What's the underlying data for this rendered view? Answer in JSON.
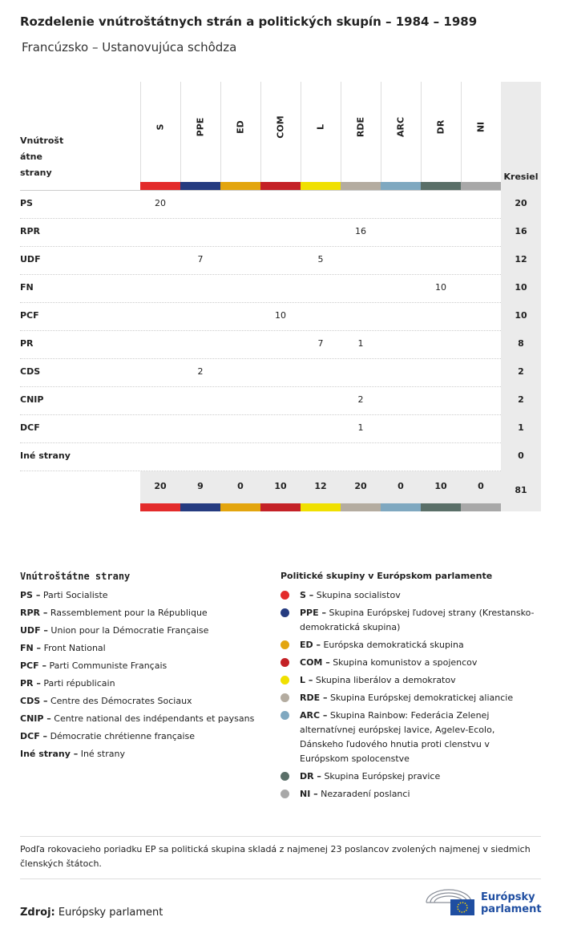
{
  "header": {
    "title": "Rozdelenie vnútroštátnych strán a politických skupín – 1984 – 1989",
    "subtitle": "Francúzsko – Ustanovujúca schôdza"
  },
  "table": {
    "row_header": "Vnútroštátne strany",
    "total_header": "Kresiel",
    "columns": [
      {
        "code": "S",
        "color": "#e32b2b"
      },
      {
        "code": "PPE",
        "color": "#253b80"
      },
      {
        "code": "ED",
        "color": "#e3a50e"
      },
      {
        "code": "COM",
        "color": "#c42126"
      },
      {
        "code": "L",
        "color": "#f0e000"
      },
      {
        "code": "RDE",
        "color": "#b4aca0"
      },
      {
        "code": "ARC",
        "color": "#7fa8c0"
      },
      {
        "code": "DR",
        "color": "#5a6f68"
      },
      {
        "code": "NI",
        "color": "#a8a8a8"
      }
    ],
    "rows": [
      {
        "party": "PS",
        "cells": [
          20,
          null,
          null,
          null,
          null,
          null,
          null,
          null,
          null
        ],
        "total": 20
      },
      {
        "party": "RPR",
        "cells": [
          null,
          null,
          null,
          null,
          null,
          16,
          null,
          null,
          null
        ],
        "total": 16
      },
      {
        "party": "UDF",
        "cells": [
          null,
          7,
          null,
          null,
          5,
          null,
          null,
          null,
          null
        ],
        "total": 12
      },
      {
        "party": "FN",
        "cells": [
          null,
          null,
          null,
          null,
          null,
          null,
          null,
          10,
          null
        ],
        "total": 10
      },
      {
        "party": "PCF",
        "cells": [
          null,
          null,
          null,
          10,
          null,
          null,
          null,
          null,
          null
        ],
        "total": 10
      },
      {
        "party": "PR",
        "cells": [
          null,
          null,
          null,
          null,
          7,
          1,
          null,
          null,
          null
        ],
        "total": 8
      },
      {
        "party": "CDS",
        "cells": [
          null,
          2,
          null,
          null,
          null,
          null,
          null,
          null,
          null
        ],
        "total": 2
      },
      {
        "party": "CNIP",
        "cells": [
          null,
          null,
          null,
          null,
          null,
          2,
          null,
          null,
          null
        ],
        "total": 2
      },
      {
        "party": "DCF",
        "cells": [
          null,
          null,
          null,
          null,
          null,
          1,
          null,
          null,
          null
        ],
        "total": 1
      },
      {
        "party": "Iné strany",
        "cells": [
          null,
          null,
          null,
          null,
          null,
          null,
          null,
          null,
          null
        ],
        "total": 0
      }
    ],
    "totals": [
      20,
      9,
      0,
      10,
      12,
      20,
      0,
      10,
      0
    ],
    "grand_total": 81
  },
  "national_legend": {
    "title": "Vnútroštátne strany",
    "items": [
      {
        "abbr": "PS –",
        "name": "Parti Socialiste"
      },
      {
        "abbr": "RPR –",
        "name": "Rassemblement pour la République"
      },
      {
        "abbr": "UDF –",
        "name": "Union pour la Démocratie Française"
      },
      {
        "abbr": "FN –",
        "name": "Front National"
      },
      {
        "abbr": "PCF –",
        "name": "Parti Communiste Français"
      },
      {
        "abbr": "PR –",
        "name": "Parti républicain"
      },
      {
        "abbr": "CDS –",
        "name": "Centre des Démocrates Sociaux"
      },
      {
        "abbr": "CNIP –",
        "name": "Centre national des indépendants et paysans"
      },
      {
        "abbr": "DCF –",
        "name": "Démocratie chrétienne française"
      },
      {
        "abbr": "Iné strany –",
        "name": "Iné strany"
      }
    ]
  },
  "group_legend": {
    "title": "Politické skupiny v Európskom parlamente",
    "items": [
      {
        "abbr": "S –",
        "name": "Skupina socialistov"
      },
      {
        "abbr": "PPE –",
        "name": "Skupina Európskej ľudovej strany (Krestansko-demokratická skupina)"
      },
      {
        "abbr": "ED –",
        "name": "Európska demokratická skupina"
      },
      {
        "abbr": "COM –",
        "name": "Skupina komunistov a spojencov"
      },
      {
        "abbr": "L –",
        "name": "Skupina liberálov a demokratov"
      },
      {
        "abbr": "RDE –",
        "name": "Skupina Európskej demokratickej aliancie"
      },
      {
        "abbr": "ARC –",
        "name": "Skupina Rainbow: Federácia Zelenej alternatívnej európskej lavice, Agelev-Ecolo, Dánskeho ľudového hnutia proti clenstvu v Európskom spolocenstve"
      },
      {
        "abbr": "DR –",
        "name": "Skupina Európskej pravice"
      },
      {
        "abbr": "NI –",
        "name": "Nezaradení poslanci"
      }
    ]
  },
  "note": "Podľa rokovacieho poriadku EP sa politická skupina skladá z najmenej 23 poslancov zvolených najmenej v siedmich členských štátoch.",
  "source": {
    "label": "Zdroj:",
    "text": "Európsky parlament"
  },
  "logo": {
    "line1": "Európsky",
    "line2": "parlament"
  }
}
